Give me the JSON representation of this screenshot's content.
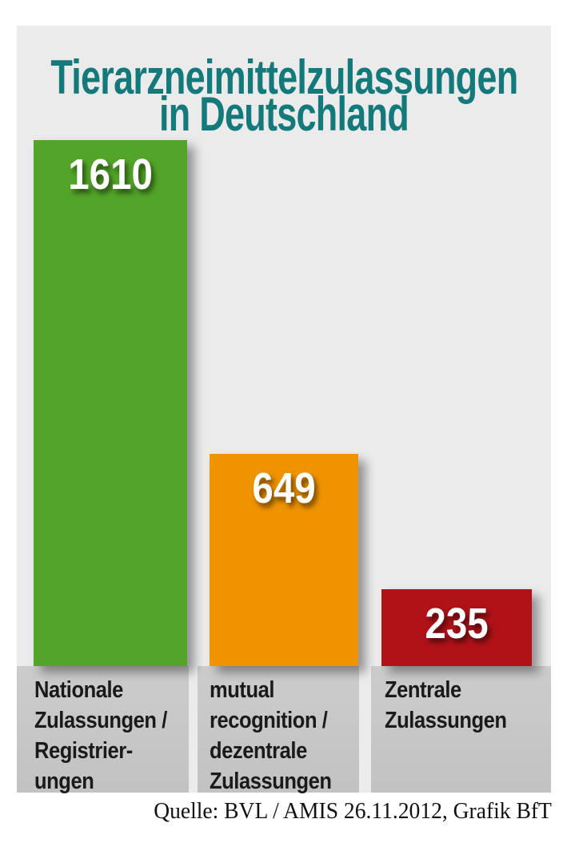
{
  "title": {
    "line1": "Tierarzneimittelzulassungen",
    "line2": "in Deutschland"
  },
  "chart_data": {
    "type": "bar",
    "title": "Tierarzneimittelzulassungen in Deutschland",
    "categories": [
      "Nationale Zulassungen / Registrierungen",
      "mutual recognition / dezentrale Zulassungen",
      "Zentrale Zulassungen"
    ],
    "values": [
      1610,
      649,
      235
    ],
    "value_labels": [
      "1610",
      "649",
      "235"
    ],
    "category_label_lines": [
      "Nationale\nZulassungen /\nRegistrier-\nungen",
      "mutual\nrecognition /\ndezentrale\nZulassungen",
      "Zentrale\nZulassungen"
    ],
    "bar_colors": [
      "#52A528",
      "#F09300",
      "#B01218"
    ],
    "ylim": [
      0,
      1650
    ],
    "grid": false,
    "legend": "none",
    "source": "Quelle: BVL / AMIS 26.11.2012, Grafik BfT"
  },
  "colors": {
    "page_bg": "#FFFFFF",
    "panel_bg": "#EBEBEC",
    "band_bg": "#C7C7C8",
    "title_text": "#14797B",
    "value_text": "#FFFFFF",
    "label_text": "#1A1A1A",
    "source_text": "#111111"
  }
}
